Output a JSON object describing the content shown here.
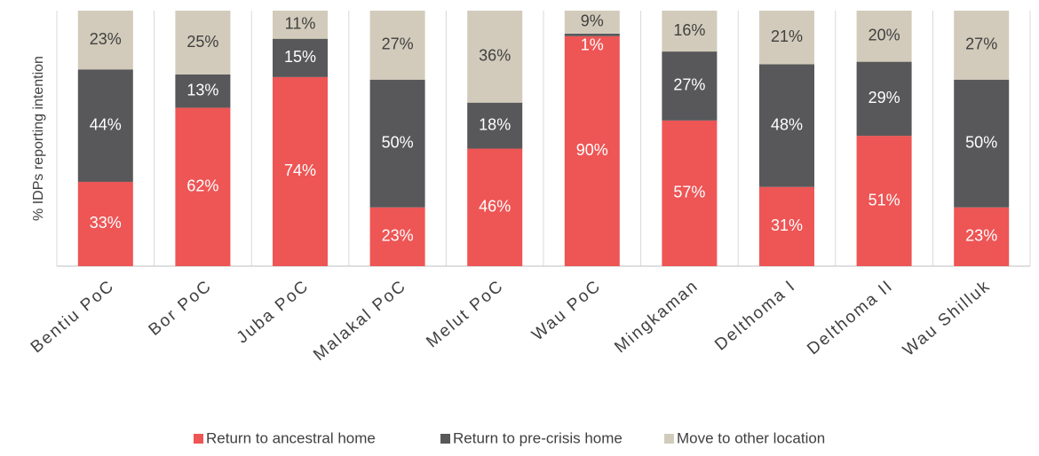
{
  "chart_data": {
    "type": "stacked_bar",
    "y_label": "% IDPs reporting intention",
    "categories": [
      "Bentiu PoC",
      "Bor PoC",
      "Juba PoC",
      "Malakal PoC",
      "Melut PoC",
      "Wau PoC",
      "Mingkaman",
      "Delthoma I",
      "Delthoma II",
      "Wau Shilluk"
    ],
    "series": [
      {
        "name": "Return to ancestral home",
        "color": "#ee5555",
        "values": [
          33,
          62,
          74,
          23,
          46,
          90,
          57,
          31,
          51,
          23
        ],
        "value_labels": [
          "33%",
          "62%",
          "74%",
          "23%",
          "46%",
          "90%",
          "57%",
          "31%",
          "51%",
          "23%"
        ]
      },
      {
        "name": "Return to pre-crisis home",
        "color": "#58585a",
        "values": [
          44,
          13,
          15,
          50,
          18,
          1,
          27,
          48,
          29,
          50
        ],
        "value_labels": [
          "44%",
          "13%",
          "15%",
          "50%",
          "18%",
          "1%",
          "27%",
          "48%",
          "29%",
          "50%"
        ]
      },
      {
        "name": "Move to other location",
        "color": "#d2cbbb",
        "values": [
          23,
          25,
          11,
          27,
          36,
          9,
          16,
          21,
          20,
          27
        ],
        "value_labels": [
          "23%",
          "25%",
          "11%",
          "27%",
          "36%",
          "9%",
          "16%",
          "21%",
          "20%",
          "27%"
        ]
      }
    ],
    "ylim": [
      0,
      100
    ]
  }
}
